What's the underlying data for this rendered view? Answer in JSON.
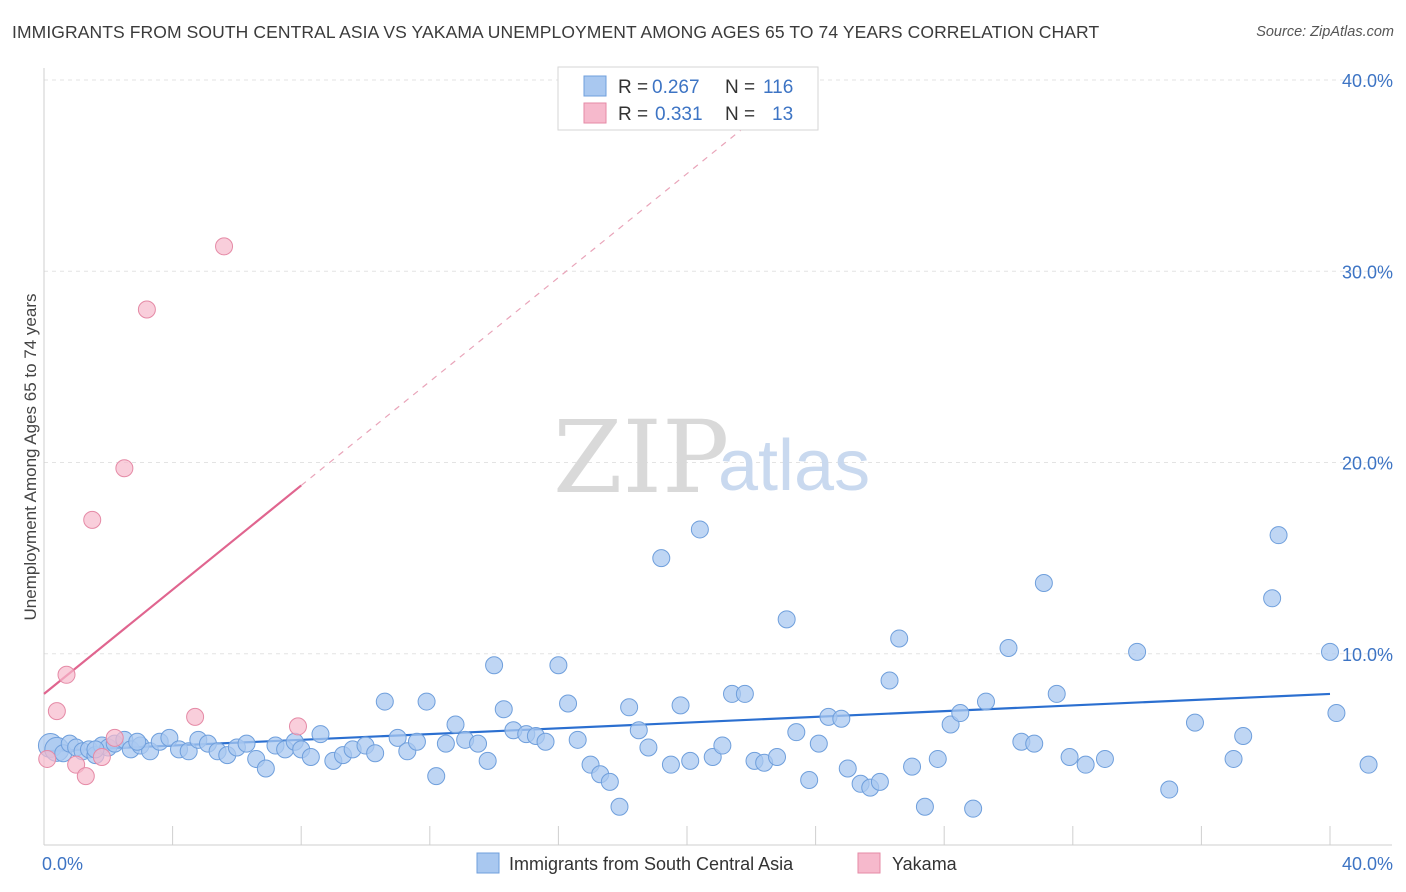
{
  "title": "IMMIGRANTS FROM SOUTH CENTRAL ASIA VS YAKAMA UNEMPLOYMENT AMONG AGES 65 TO 74 YEARS CORRELATION CHART",
  "source": "Source: ZipAtlas.com",
  "watermark": {
    "zip": "ZIP",
    "atlas": "atlas"
  },
  "legend": {
    "rows": [
      {
        "r_label": "R =",
        "r_value": "0.267",
        "n_label": "N =",
        "n_value": "116",
        "color": "#a9c8f0"
      },
      {
        "r_label": "R =",
        "r_value": "0.331",
        "n_label": "N =",
        "n_value": "13",
        "color": "#f6b9cc"
      }
    ]
  },
  "bottom_legend": [
    {
      "label": "Immigrants from South Central Asia",
      "color": "#a9c8f0"
    },
    {
      "label": "Yakama",
      "color": "#f6b9cc"
    }
  ],
  "chart_data": {
    "type": "scatter",
    "ylabel": "Unemployment Among Ages 65 to 74 years",
    "xlim": [
      0,
      40
    ],
    "ylim": [
      0,
      40
    ],
    "y_ticks": [
      {
        "value": 10,
        "label": "10.0%"
      },
      {
        "value": 20,
        "label": "20.0%"
      },
      {
        "value": 30,
        "label": "30.0%"
      },
      {
        "value": 40,
        "label": "40.0%"
      }
    ],
    "x_tick_labels": {
      "min": "0.0%",
      "max": "40.0%"
    },
    "x_minor_ticks": [
      4,
      8,
      12,
      16,
      20,
      24,
      28,
      32,
      36,
      40
    ],
    "grid": true,
    "colors": {
      "blue_fill": "#a9c8f0",
      "blue_stroke": "#6f9fdc",
      "blue_line": "#2b6fd0",
      "pink_fill": "#f6b9cc",
      "pink_stroke": "#e58aa6",
      "pink_line": "#e0658f"
    },
    "series": [
      {
        "name": "Immigrants from South Central Asia",
        "trend": {
          "x0": 0,
          "y0": 4.9,
          "x1": 40,
          "y1": 7.9
        },
        "points": [
          [
            0.2,
            5.2
          ],
          [
            0.4,
            5.0
          ],
          [
            0.6,
            4.8
          ],
          [
            0.8,
            5.3
          ],
          [
            1.0,
            5.1
          ],
          [
            1.2,
            4.9
          ],
          [
            1.4,
            5.0
          ],
          [
            1.6,
            4.7
          ],
          [
            1.8,
            5.2
          ],
          [
            2.0,
            5.1
          ],
          [
            2.2,
            5.3
          ],
          [
            2.5,
            5.5
          ],
          [
            2.7,
            5.0
          ],
          [
            3.0,
            5.2
          ],
          [
            3.3,
            4.9
          ],
          [
            3.6,
            5.4
          ],
          [
            3.9,
            5.6
          ],
          [
            4.2,
            5.0
          ],
          [
            4.5,
            4.9
          ],
          [
            4.8,
            5.5
          ],
          [
            5.1,
            5.3
          ],
          [
            5.4,
            4.9
          ],
          [
            5.7,
            4.7
          ],
          [
            6.0,
            5.1
          ],
          [
            6.3,
            5.3
          ],
          [
            6.6,
            4.5
          ],
          [
            6.9,
            4.0
          ],
          [
            7.2,
            5.2
          ],
          [
            7.5,
            5.0
          ],
          [
            7.8,
            5.4
          ],
          [
            8.0,
            5.0
          ],
          [
            8.3,
            4.6
          ],
          [
            8.6,
            5.8
          ],
          [
            9.0,
            4.4
          ],
          [
            9.3,
            4.7
          ],
          [
            9.6,
            5.0
          ],
          [
            10.0,
            5.2
          ],
          [
            10.3,
            4.8
          ],
          [
            10.6,
            7.5
          ],
          [
            11.0,
            5.6
          ],
          [
            11.3,
            4.9
          ],
          [
            11.6,
            5.4
          ],
          [
            11.9,
            7.5
          ],
          [
            12.2,
            3.6
          ],
          [
            12.5,
            5.3
          ],
          [
            12.8,
            6.3
          ],
          [
            13.1,
            5.5
          ],
          [
            13.5,
            5.3
          ],
          [
            13.8,
            4.4
          ],
          [
            14.0,
            9.4
          ],
          [
            14.3,
            7.1
          ],
          [
            14.6,
            6.0
          ],
          [
            15.0,
            5.8
          ],
          [
            15.3,
            5.7
          ],
          [
            15.6,
            5.4
          ],
          [
            16.0,
            9.4
          ],
          [
            16.3,
            7.4
          ],
          [
            16.6,
            5.5
          ],
          [
            17.0,
            4.2
          ],
          [
            17.3,
            3.7
          ],
          [
            17.6,
            3.3
          ],
          [
            17.9,
            2.0
          ],
          [
            18.2,
            7.2
          ],
          [
            18.5,
            6.0
          ],
          [
            18.8,
            5.1
          ],
          [
            19.2,
            15.0
          ],
          [
            19.5,
            4.2
          ],
          [
            19.8,
            7.3
          ],
          [
            20.1,
            4.4
          ],
          [
            20.4,
            16.5
          ],
          [
            20.8,
            4.6
          ],
          [
            21.1,
            5.2
          ],
          [
            21.4,
            7.9
          ],
          [
            21.8,
            7.9
          ],
          [
            22.1,
            4.4
          ],
          [
            22.4,
            4.3
          ],
          [
            22.8,
            4.6
          ],
          [
            23.1,
            11.8
          ],
          [
            23.4,
            5.9
          ],
          [
            23.8,
            3.4
          ],
          [
            24.1,
            5.3
          ],
          [
            24.4,
            6.7
          ],
          [
            24.8,
            6.6
          ],
          [
            25.0,
            4.0
          ],
          [
            25.4,
            3.2
          ],
          [
            25.7,
            3.0
          ],
          [
            26.0,
            3.3
          ],
          [
            26.3,
            8.6
          ],
          [
            26.6,
            10.8
          ],
          [
            27.0,
            4.1
          ],
          [
            27.4,
            2.0
          ],
          [
            27.8,
            4.5
          ],
          [
            28.2,
            6.3
          ],
          [
            28.5,
            6.9
          ],
          [
            28.9,
            1.9
          ],
          [
            29.3,
            7.5
          ],
          [
            30.0,
            10.3
          ],
          [
            30.4,
            5.4
          ],
          [
            30.8,
            5.3
          ],
          [
            31.1,
            13.7
          ],
          [
            31.5,
            7.9
          ],
          [
            31.9,
            4.6
          ],
          [
            32.4,
            4.2
          ],
          [
            33.0,
            4.5
          ],
          [
            34.0,
            10.1
          ],
          [
            35.0,
            2.9
          ],
          [
            35.8,
            6.4
          ],
          [
            37.0,
            4.5
          ],
          [
            37.3,
            5.7
          ],
          [
            38.2,
            12.9
          ],
          [
            38.4,
            16.2
          ],
          [
            40.0,
            10.1
          ],
          [
            40.2,
            6.9
          ],
          [
            41.2,
            4.2
          ],
          [
            1.6,
            5.0
          ],
          [
            2.9,
            5.4
          ]
        ]
      },
      {
        "name": "Yakama",
        "trend": {
          "x0": 0,
          "y0": 7.9,
          "x1": 8.0,
          "y1": 18.8
        },
        "trend_extension": {
          "x0": 8.0,
          "y0": 18.8,
          "x1": 22.5,
          "y1": 38.5
        },
        "points": [
          [
            0.1,
            4.5
          ],
          [
            0.4,
            7.0
          ],
          [
            0.7,
            8.9
          ],
          [
            1.0,
            4.2
          ],
          [
            1.3,
            3.6
          ],
          [
            1.5,
            17.0
          ],
          [
            1.8,
            4.6
          ],
          [
            2.2,
            5.6
          ],
          [
            2.5,
            19.7
          ],
          [
            3.2,
            28.0
          ],
          [
            4.7,
            6.7
          ],
          [
            5.6,
            31.3
          ],
          [
            7.9,
            6.2
          ]
        ]
      }
    ]
  }
}
